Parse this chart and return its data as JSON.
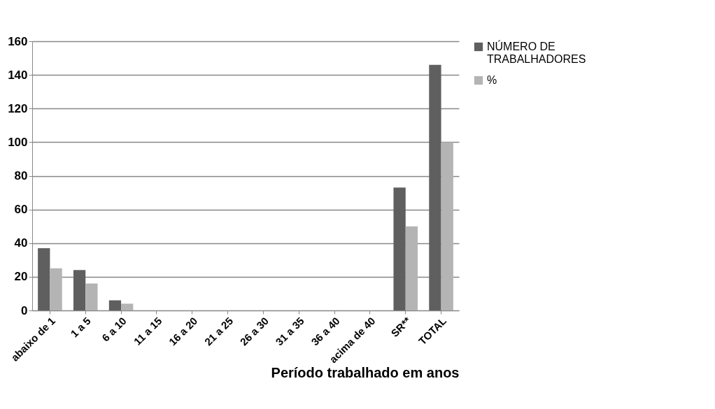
{
  "chart_data": {
    "type": "bar",
    "xlabel": "Período trabalhado em anos",
    "categories": [
      "abaixo de 1",
      "1 a 5",
      "6 a 10",
      "11 a 15",
      "16 a 20",
      "21 a 25",
      "26 a 30",
      "31 a 35",
      "36 a 40",
      "acima de 40",
      "SR**",
      "TOTAL"
    ],
    "series": [
      {
        "name": "NÚMERO  DE TRABALHADORES",
        "color": "#5f5f5f",
        "values": [
          37,
          24,
          6,
          0,
          0,
          0,
          0,
          0,
          0,
          0,
          73,
          146
        ]
      },
      {
        "name": "%",
        "color": "#b4b4b4",
        "values": [
          25,
          16,
          4,
          0,
          0,
          0,
          0,
          0,
          0,
          0,
          50,
          100
        ]
      }
    ],
    "ylim": [
      0,
      160
    ],
    "yticks": [
      0,
      20,
      40,
      60,
      80,
      100,
      120,
      140,
      160
    ],
    "grid": "y",
    "legend": "top right"
  }
}
